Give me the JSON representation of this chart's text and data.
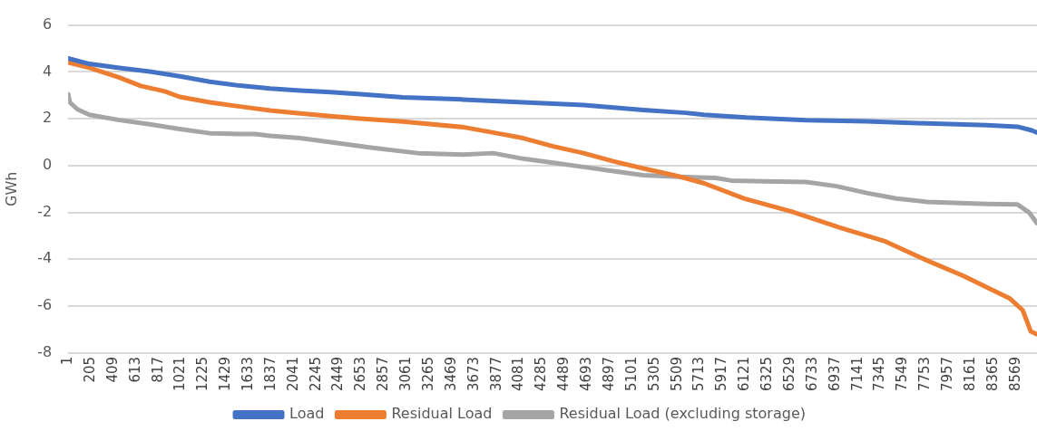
{
  "chart_data": {
    "type": "line",
    "ylabel": "GWh",
    "series": [
      {
        "name": "Load",
        "color": "#4472c4",
        "x": [
          1,
          193,
          464,
          738,
          1010,
          1281,
          1555,
          1826,
          2098,
          2373,
          2643,
          3027,
          3570,
          4114,
          4660,
          5200,
          5584,
          5747,
          6130,
          6673,
          7220,
          7767,
          8305,
          8583,
          8713,
          8760
        ],
        "values": [
          4.58,
          4.34,
          4.17,
          4.01,
          3.81,
          3.58,
          3.41,
          3.29,
          3.2,
          3.13,
          3.05,
          2.91,
          2.82,
          2.7,
          2.58,
          2.37,
          2.25,
          2.17,
          2.05,
          1.94,
          1.89,
          1.8,
          1.72,
          1.66,
          1.5,
          1.41
        ]
      },
      {
        "name": "Residual Load",
        "color": "#ed7d31",
        "x": [
          1,
          193,
          464,
          656,
          874,
          1010,
          1281,
          1555,
          1826,
          2098,
          2373,
          2643,
          3027,
          3570,
          3843,
          4114,
          4386,
          4660,
          4930,
          5200,
          5476,
          5747,
          6115,
          6541,
          6965,
          7390,
          7755,
          8091,
          8516,
          8630,
          8704,
          8760
        ],
        "values": [
          4.4,
          4.17,
          3.76,
          3.4,
          3.17,
          2.93,
          2.7,
          2.52,
          2.35,
          2.23,
          2.11,
          2.0,
          1.88,
          1.64,
          1.41,
          1.17,
          0.82,
          0.53,
          0.18,
          -0.12,
          -0.41,
          -0.75,
          -1.41,
          -1.96,
          -2.63,
          -3.24,
          -4.03,
          -4.7,
          -5.68,
          -6.17,
          -7.08,
          -7.2
        ]
      },
      {
        "name": "Residual Load (excluding storage)",
        "color": "#a5a5a5",
        "x": [
          1,
          15,
          85,
          193,
          464,
          738,
          1010,
          1281,
          1555,
          1690,
          1826,
          2098,
          2373,
          2753,
          3161,
          3570,
          3843,
          4114,
          4386,
          4660,
          4930,
          5200,
          5476,
          5855,
          5994,
          6402,
          6673,
          6947,
          7220,
          7490,
          7767,
          8305,
          8583,
          8688,
          8760
        ],
        "values": [
          3.05,
          2.7,
          2.4,
          2.17,
          1.94,
          1.76,
          1.56,
          1.38,
          1.35,
          1.35,
          1.27,
          1.17,
          1.0,
          0.76,
          0.53,
          0.47,
          0.53,
          0.29,
          0.12,
          -0.06,
          -0.24,
          -0.41,
          -0.47,
          -0.53,
          -0.64,
          -0.68,
          -0.7,
          -0.88,
          -1.17,
          -1.41,
          -1.55,
          -1.64,
          -1.66,
          -2.0,
          -2.46
        ]
      }
    ],
    "xlim": [
      1,
      8760
    ],
    "xticks": [
      1,
      205,
      409,
      613,
      817,
      1021,
      1225,
      1429,
      1633,
      1837,
      2041,
      2245,
      2449,
      2653,
      2857,
      3061,
      3265,
      3469,
      3673,
      3877,
      4081,
      4285,
      4489,
      4693,
      4897,
      5101,
      5305,
      5509,
      5713,
      5917,
      6121,
      6325,
      6529,
      6733,
      6937,
      7141,
      7345,
      7549,
      7753,
      7957,
      8161,
      8365,
      8569
    ],
    "ylim": [
      -8,
      6
    ],
    "yticks": [
      -8,
      -6,
      -4,
      -2,
      0,
      2,
      4,
      6
    ],
    "grid": "y",
    "legend": "bottom",
    "marker": "none",
    "line_style": "solid"
  }
}
